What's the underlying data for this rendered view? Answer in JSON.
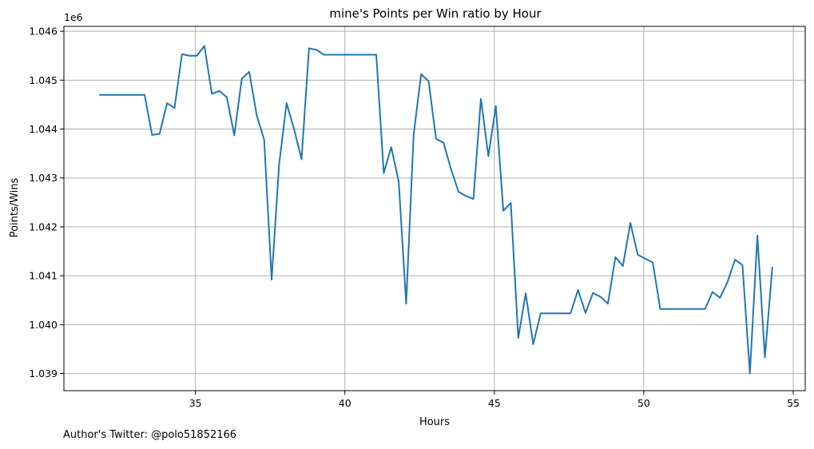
{
  "chart_data": {
    "type": "line",
    "title": "mine's Points per Win ratio by Hour",
    "xlabel": "Hours",
    "ylabel": "Points/Wins",
    "y_offset_label": "1e6",
    "xlim": [
      30.6,
      55.4
    ],
    "ylim": [
      1038.65,
      1046.1
    ],
    "x_ticks": [
      35,
      40,
      45,
      50,
      55
    ],
    "x_tick_labels": [
      "35",
      "40",
      "45",
      "50",
      "55"
    ],
    "y_ticks": [
      1039,
      1040,
      1041,
      1042,
      1043,
      1044,
      1045,
      1046
    ],
    "y_tick_labels": [
      "1.039",
      "1.040",
      "1.041",
      "1.042",
      "1.043",
      "1.044",
      "1.045",
      "1.046"
    ],
    "grid": true,
    "series": [
      {
        "color": "#1f77b4",
        "x": [
          31.8,
          33.3,
          33.55,
          33.8,
          34.05,
          34.3,
          34.55,
          34.8,
          35.05,
          35.3,
          35.55,
          35.8,
          36.05,
          36.3,
          36.55,
          36.8,
          37.05,
          37.3,
          37.55,
          37.8,
          38.05,
          38.3,
          38.55,
          38.8,
          39.05,
          39.3,
          39.55,
          39.8,
          40.05,
          40.3,
          40.55,
          40.8,
          41.05,
          41.3,
          41.55,
          41.8,
          42.05,
          42.3,
          42.55,
          42.8,
          43.05,
          43.3,
          43.55,
          43.8,
          44.05,
          44.3,
          44.55,
          44.8,
          45.05,
          45.3,
          45.55,
          45.8,
          46.05,
          46.3,
          46.55,
          46.8,
          47.05,
          47.3,
          47.55,
          47.8,
          48.05,
          48.3,
          48.55,
          48.8,
          49.05,
          49.3,
          49.55,
          49.8,
          50.05,
          50.3,
          50.55,
          50.8,
          51.05,
          51.3,
          51.55,
          51.8,
          52.05,
          52.3,
          52.55,
          52.8,
          53.05,
          53.3,
          53.55,
          53.8,
          54.05,
          54.3
        ],
        "y": [
          1044.7,
          1044.7,
          1043.88,
          1043.9,
          1044.53,
          1044.43,
          1045.53,
          1045.5,
          1045.5,
          1045.7,
          1044.72,
          1044.78,
          1044.65,
          1043.87,
          1045.03,
          1045.17,
          1044.28,
          1043.78,
          1040.92,
          1043.28,
          1044.53,
          1044.0,
          1043.38,
          1045.65,
          1045.62,
          1045.52,
          1045.52,
          1045.52,
          1045.52,
          1045.52,
          1045.52,
          1045.52,
          1045.52,
          1043.1,
          1043.63,
          1042.93,
          1040.43,
          1043.88,
          1045.12,
          1044.98,
          1043.8,
          1043.72,
          1043.18,
          1042.72,
          1042.63,
          1042.57,
          1044.62,
          1043.45,
          1044.47,
          1042.33,
          1042.49,
          1039.73,
          1040.64,
          1039.6,
          1040.23,
          1040.23,
          1040.23,
          1040.23,
          1040.23,
          1040.71,
          1040.24,
          1040.65,
          1040.57,
          1040.43,
          1041.38,
          1041.2,
          1042.08,
          1041.43,
          1041.35,
          1041.27,
          1040.32,
          1040.32,
          1040.32,
          1040.32,
          1040.32,
          1040.32,
          1040.32,
          1040.67,
          1040.55,
          1040.87,
          1041.33,
          1041.22,
          1039.0,
          1041.82,
          1039.33,
          1041.17
        ]
      }
    ]
  },
  "footer": {
    "author_credit": "Author's Twitter: @polo51852166"
  }
}
